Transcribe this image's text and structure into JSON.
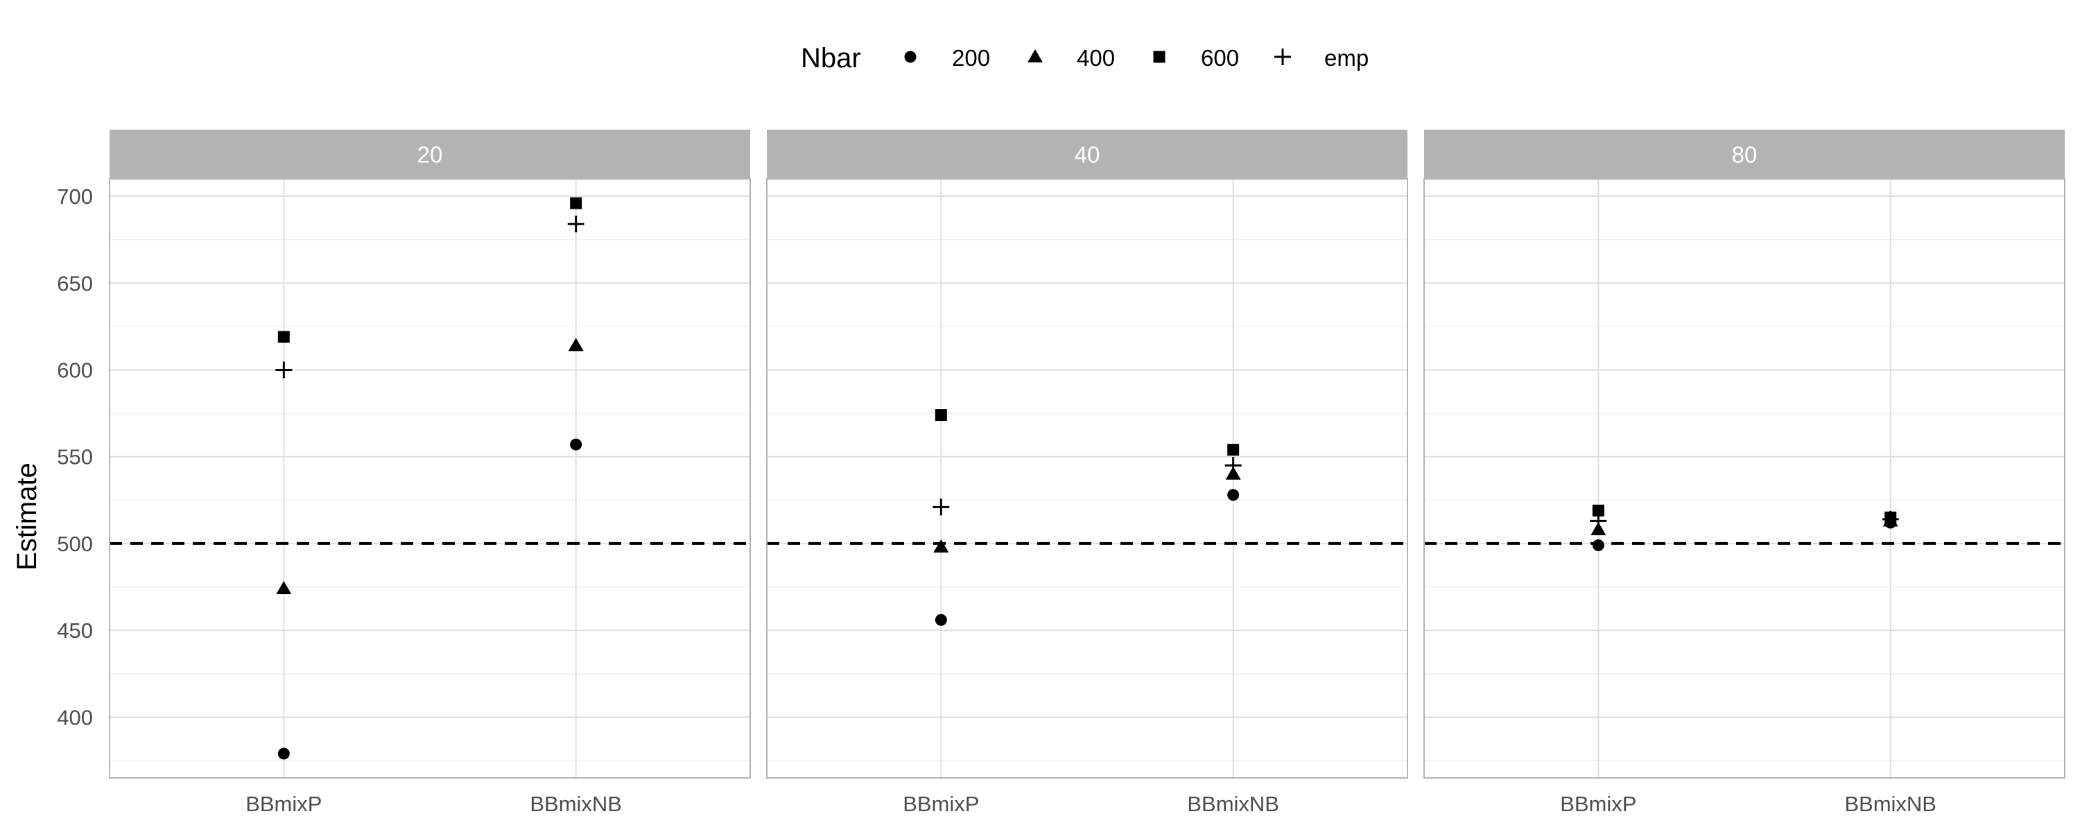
{
  "chart_data": {
    "type": "scatter",
    "ylabel": "Estimate",
    "xlabel": "",
    "ylim": [
      365,
      710
    ],
    "yticks": [
      400,
      450,
      500,
      550,
      600,
      650,
      700
    ],
    "reference_line": {
      "y": 500,
      "style": "dashed"
    },
    "grid": true,
    "legend": {
      "title": "Nbar",
      "position": "top",
      "entries": [
        {
          "label": "200",
          "shape": "circle"
        },
        {
          "label": "400",
          "shape": "triangle"
        },
        {
          "label": "600",
          "shape": "square"
        },
        {
          "label": "emp",
          "shape": "plus"
        }
      ]
    },
    "categories": [
      "BBmixP",
      "BBmixNB"
    ],
    "panels": [
      {
        "label": "20",
        "series": [
          {
            "name": "200",
            "values": [
              379,
              557
            ]
          },
          {
            "name": "400",
            "values": [
              474,
              614
            ]
          },
          {
            "name": "600",
            "values": [
              619,
              696
            ]
          },
          {
            "name": "emp",
            "values": [
              600,
              684
            ]
          }
        ]
      },
      {
        "label": "40",
        "series": [
          {
            "name": "200",
            "values": [
              456,
              528
            ]
          },
          {
            "name": "400",
            "values": [
              498,
              540
            ]
          },
          {
            "name": "600",
            "values": [
              574,
              554
            ]
          },
          {
            "name": "emp",
            "values": [
              521,
              545
            ]
          }
        ]
      },
      {
        "label": "80",
        "series": [
          {
            "name": "200",
            "values": [
              499,
              512
            ]
          },
          {
            "name": "400",
            "values": [
              508,
              513
            ]
          },
          {
            "name": "600",
            "values": [
              519,
              515
            ]
          },
          {
            "name": "emp",
            "values": [
              513,
              514
            ]
          }
        ]
      }
    ]
  }
}
